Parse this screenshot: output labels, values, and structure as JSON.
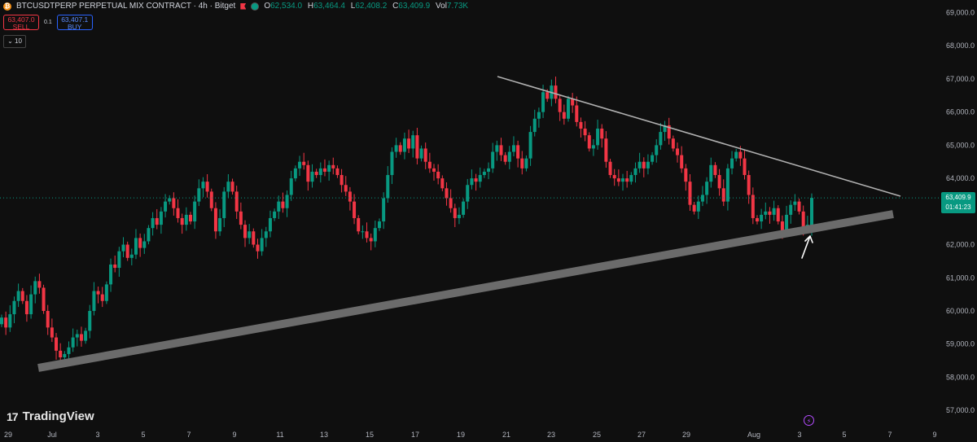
{
  "header": {
    "symbol": "BTCUSDTPERP PERPETUAL MIX CONTRACT · 4h · Bitget",
    "ohlc": [
      {
        "k": "O",
        "v": "62,534.0"
      },
      {
        "k": "H",
        "v": "63,464.4"
      },
      {
        "k": "L",
        "v": "62,408.2"
      },
      {
        "k": "C",
        "v": "63,409.9"
      },
      {
        "k": "Vol",
        "v": "7.73K"
      }
    ]
  },
  "trade": {
    "sell_price": "63,407.0",
    "sell_label": "SELL",
    "spread": "0.1",
    "buy_price": "63,407.1",
    "buy_label": "BUY",
    "quantity": "10"
  },
  "price_axis": {
    "labels": [
      "69,000.0",
      "68,000.0",
      "67,000.0",
      "66,000.0",
      "65,000.0",
      "64,000.0",
      "62,000.0",
      "61,000.0",
      "60,000.0",
      "59,000.0",
      "58,000.0",
      "57,000.0"
    ],
    "current_price": "63,409.9",
    "countdown": "01:41:23"
  },
  "time_axis": {
    "labels": [
      "29",
      "Jul",
      "3",
      "5",
      "7",
      "9",
      "11",
      "13",
      "15",
      "17",
      "19",
      "21",
      "23",
      "25",
      "27",
      "29",
      "Aug",
      "3",
      "5",
      "7",
      "9"
    ]
  },
  "branding": {
    "name": "TradingView",
    "mark": "17"
  },
  "colors": {
    "up": "#089981",
    "down": "#f23645",
    "background": "#0f0f0f",
    "trendline": "#b0b0b0",
    "support_band": "#6b6b6b"
  },
  "chart_data": {
    "type": "candlestick",
    "timeframe": "4h",
    "ylim": [
      56600,
      69300
    ],
    "closes": [
      59800,
      59500,
      59900,
      60300,
      60600,
      60300,
      59900,
      60500,
      60900,
      60700,
      60000,
      59500,
      59200,
      58800,
      58600,
      58700,
      58900,
      59200,
      59300,
      59100,
      59400,
      60000,
      60600,
      60500,
      60300,
      60800,
      61400,
      61300,
      61800,
      62000,
      61600,
      61700,
      62200,
      61900,
      62100,
      62500,
      62800,
      62600,
      63000,
      63300,
      63400,
      63100,
      62800,
      62600,
      62900,
      62700,
      63300,
      63700,
      63900,
      63600,
      63100,
      62400,
      62800,
      63600,
      63900,
      63600,
      63000,
      62600,
      62200,
      62400,
      62000,
      61800,
      62200,
      62400,
      62800,
      63000,
      63300,
      63100,
      63500,
      64000,
      64300,
      64500,
      64400,
      63900,
      64200,
      64100,
      64300,
      64200,
      64400,
      64300,
      64100,
      63800,
      63600,
      63300,
      62800,
      62400,
      62400,
      62200,
      62100,
      62500,
      62700,
      63400,
      64100,
      64800,
      65000,
      64800,
      65200,
      64900,
      65300,
      64600,
      64900,
      64500,
      64300,
      64200,
      64000,
      63700,
      63400,
      63100,
      62800,
      62900,
      63300,
      63800,
      64000,
      63900,
      64100,
      64200,
      64300,
      64800,
      65000,
      64700,
      64500,
      64800,
      65000,
      64600,
      64300,
      64600,
      65400,
      65800,
      66000,
      66600,
      66400,
      66800,
      66400,
      66000,
      65800,
      66400,
      66200,
      65700,
      65500,
      65300,
      64900,
      65000,
      65500,
      65200,
      64500,
      64100,
      64000,
      63900,
      64000,
      63900,
      64100,
      64300,
      64500,
      64300,
      64500,
      64700,
      65000,
      65400,
      65600,
      65200,
      64900,
      64700,
      64300,
      63900,
      63200,
      63000,
      63300,
      63500,
      63900,
      64400,
      64100,
      63700,
      63300,
      64300,
      64600,
      64800,
      64600,
      64100,
      63500,
      62800,
      62700,
      62900,
      63000,
      62900,
      63100,
      62700,
      62400,
      62900,
      63200,
      63300,
      63000,
      62500,
      62600,
      63410
    ]
  }
}
